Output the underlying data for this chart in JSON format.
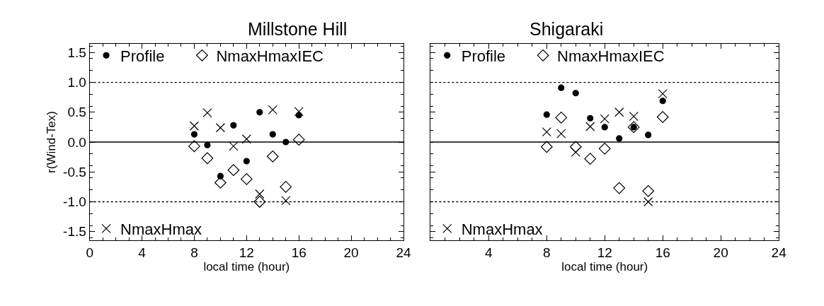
{
  "chart_data": [
    {
      "type": "scatter",
      "title": "Millstone Hill",
      "xlabel": "local time (hour)",
      "ylabel": "r(Wind-Tex)",
      "x": [
        8,
        9,
        10,
        11,
        12,
        13,
        14,
        15,
        16
      ],
      "xlim": [
        0,
        24
      ],
      "xticks": [
        0,
        4,
        8,
        12,
        16,
        20,
        24
      ],
      "ylim": [
        -1.65,
        1.65
      ],
      "yticks": [
        {
          "value": -1.5,
          "label": "-1.5"
        },
        {
          "value": -1.0,
          "label": "-1.0"
        },
        {
          "value": -0.5,
          "label": "-0.5"
        },
        {
          "value": 0,
          "label": "0.0"
        },
        {
          "value": 0.5,
          "label": "0.5"
        },
        {
          "value": 1.0,
          "label": "1.0"
        },
        {
          "value": 1.5,
          "label": "1.5"
        }
      ],
      "legend": "left",
      "series": [
        {
          "name": "Profile",
          "color": "#000000",
          "marker": "circle",
          "values": [
            0.13,
            -0.05,
            -0.57,
            0.28,
            -0.32,
            0.5,
            0.13,
            0.0,
            0.45
          ]
        },
        {
          "name": "NmaxHmaxIEC",
          "color": "#000000",
          "marker": "diamond",
          "values": [
            -0.07,
            -0.27,
            -0.68,
            -0.47,
            -0.62,
            -1.0,
            -0.24,
            -0.75,
            0.04
          ]
        },
        {
          "name": "NmaxHmax",
          "color": "#000000",
          "marker": "cross",
          "values": [
            0.27,
            0.49,
            0.24,
            -0.07,
            0.05,
            -0.87,
            0.54,
            -0.98,
            0.51
          ]
        }
      ],
      "ref_lines": [
        {
          "axis": "y",
          "value": 1.0,
          "line_style": "dotted"
        },
        {
          "axis": "y",
          "value": 0,
          "line_style": "solid"
        },
        {
          "axis": "y",
          "value": -1.0,
          "line_style": "dotted"
        }
      ]
    },
    {
      "type": "scatter",
      "title": "Shigaraki",
      "xlabel": "local time (hour)",
      "x": [
        8,
        9,
        10,
        11,
        12,
        13,
        14,
        15,
        16
      ],
      "xlim": [
        0,
        24
      ],
      "xticks": [
        {
          "value": 0,
          "label": null
        },
        4,
        8,
        12,
        16,
        20,
        24
      ],
      "ylim": [
        -1.65,
        1.65
      ],
      "yticks": [
        {
          "value": -1.5,
          "label": null
        },
        {
          "value": -1.0,
          "label": null
        },
        {
          "value": -0.5,
          "label": null
        },
        {
          "value": 0,
          "label": null
        },
        {
          "value": 0.5,
          "label": null
        },
        {
          "value": 1.0,
          "label": null
        },
        {
          "value": 1.5,
          "label": null
        }
      ],
      "tick_labels": "x",
      "legend": "left",
      "series": [
        {
          "name": "Profile",
          "color": "#000000",
          "marker": "circle",
          "values": [
            0.46,
            0.91,
            0.82,
            0.4,
            0.25,
            0.06,
            0.25,
            0.12,
            0.69
          ]
        },
        {
          "name": "NmaxHmaxIEC",
          "color": "#000000",
          "marker": "diamond",
          "values": [
            -0.08,
            0.41,
            -0.08,
            -0.28,
            -0.11,
            -0.77,
            0.25,
            -0.82,
            0.42
          ]
        },
        {
          "name": "NmaxHmax",
          "color": "#000000",
          "marker": "cross",
          "values": [
            0.17,
            0.14,
            -0.17,
            0.26,
            0.39,
            0.5,
            0.43,
            -1.0,
            0.81
          ]
        }
      ],
      "ref_lines": [
        {
          "axis": "y",
          "value": 1.0,
          "line_style": "dotted"
        },
        {
          "axis": "y",
          "value": 0,
          "line_style": "solid"
        },
        {
          "axis": "y",
          "value": -1.0,
          "line_style": "dotted"
        }
      ]
    }
  ]
}
